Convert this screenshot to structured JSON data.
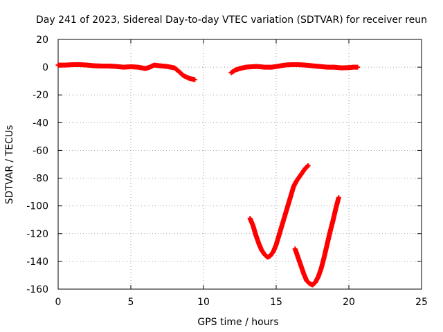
{
  "chart_data": {
    "type": "scatter",
    "title": "Day 241 of 2023, Sidereal Day-to-day VTEC variation (SDTVAR) for receiver reun",
    "xlabel": "GPS time / hours",
    "ylabel": "SDTVAR / TECUs",
    "xlim": [
      0,
      25
    ],
    "ylim": [
      -160,
      20
    ],
    "xticks": [
      "0",
      "5",
      "10",
      "15",
      "20",
      "25"
    ],
    "yticks": [
      "20",
      "0",
      "-20",
      "-40",
      "-60",
      "-80",
      "-100",
      "-120",
      "-140",
      "-160"
    ],
    "grid": true,
    "marker": "plus",
    "color": "#ff0000",
    "series": [
      {
        "x": [
          0.0,
          0.5,
          1.0,
          1.5,
          2.0,
          2.5,
          3.0,
          3.5,
          4.0,
          4.5,
          5.0,
          5.5,
          6.0,
          6.3,
          6.6,
          7.0,
          7.5,
          8.0,
          8.3,
          8.6,
          9.0,
          9.4
        ],
        "y": [
          1.5,
          1.5,
          1.8,
          1.8,
          1.5,
          1.0,
          0.8,
          0.8,
          0.5,
          0,
          0.3,
          0,
          -1,
          0,
          1.5,
          1.0,
          0.5,
          -0.5,
          -3,
          -6,
          -8,
          -9
        ]
      },
      {
        "x": [
          11.9,
          12.2,
          12.5,
          12.9,
          13.3,
          13.7,
          14.2,
          14.7,
          15.2,
          15.6,
          16.0,
          16.5,
          17.0,
          17.5,
          18.0,
          18.5,
          19.0,
          19.5,
          20.0,
          20.3,
          20.6
        ],
        "y": [
          -4,
          -2,
          -1,
          0,
          0.3,
          0.5,
          0,
          0,
          0.8,
          1.5,
          1.8,
          1.8,
          1.5,
          1.0,
          0.5,
          0,
          0,
          -0.5,
          -0.3,
          0,
          0
        ]
      },
      {
        "x": [
          13.2,
          13.4,
          13.6,
          13.8,
          14.0,
          14.2,
          14.4,
          14.6,
          14.8,
          15.0,
          15.2,
          15.4,
          15.6,
          15.8,
          16.0,
          16.2,
          16.4,
          16.6,
          16.8,
          17.0,
          17.2
        ],
        "y": [
          -109,
          -114,
          -121,
          -127,
          -132,
          -135,
          -137,
          -136,
          -133,
          -128,
          -121,
          -114,
          -107,
          -100,
          -93,
          -86,
          -82,
          -79,
          -76,
          -73,
          -71
        ]
      },
      {
        "x": [
          16.3,
          16.5,
          16.7,
          16.9,
          17.1,
          17.3,
          17.5,
          17.7,
          17.9,
          18.1,
          18.3,
          18.5,
          18.7,
          18.9,
          19.1,
          19.3
        ],
        "y": [
          -131,
          -137,
          -143,
          -149,
          -154,
          -156,
          -157,
          -155,
          -151,
          -145,
          -137,
          -128,
          -119,
          -111,
          -102,
          -94
        ]
      }
    ]
  }
}
